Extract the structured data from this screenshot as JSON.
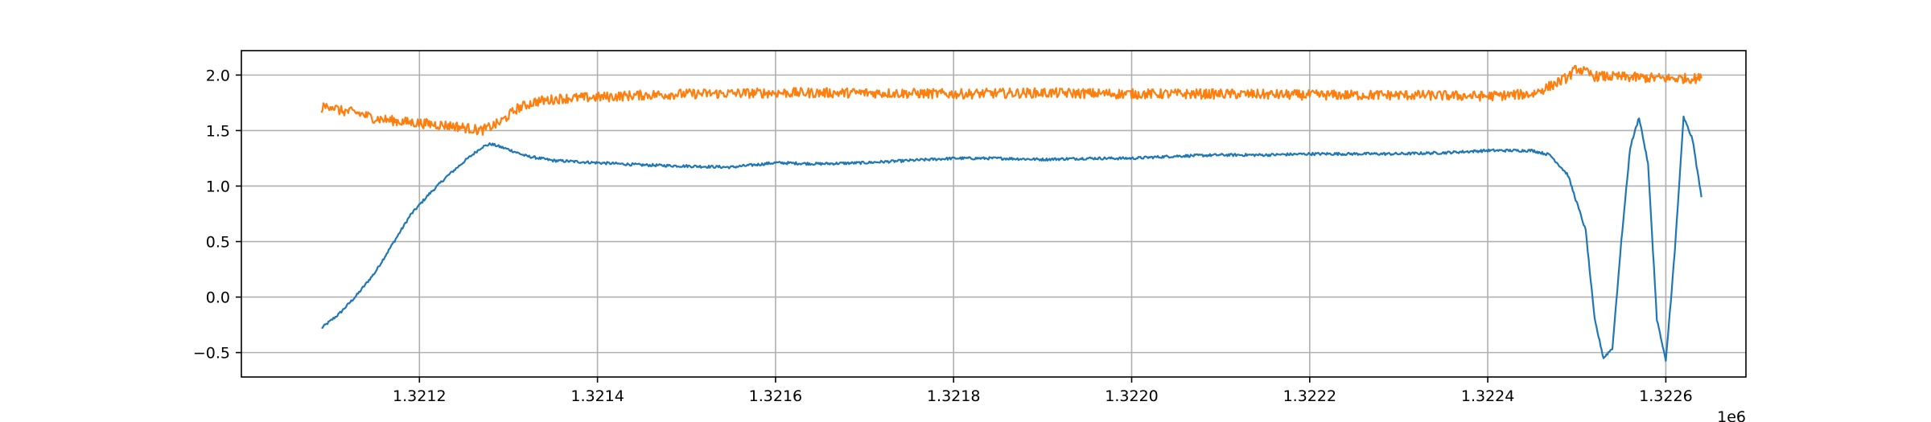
{
  "chart_data": {
    "type": "line",
    "title": "",
    "xlabel": "",
    "ylabel": "",
    "x_offset_label": "1e6",
    "xlim": [
      1.321,
      1.32269
    ],
    "ylim": [
      -0.72,
      2.22
    ],
    "grid": true,
    "x_ticks": [
      1.3212,
      1.3214,
      1.3216,
      1.3218,
      1.322,
      1.3222,
      1.3224,
      1.3226
    ],
    "x_tick_labels": [
      "1.3212",
      "1.3214",
      "1.3216",
      "1.3218",
      "1.3220",
      "1.3222",
      "1.3224",
      "1.3226"
    ],
    "y_ticks": [
      -0.5,
      0.0,
      0.5,
      1.0,
      1.5,
      2.0
    ],
    "y_tick_labels": [
      "−0.5",
      "0.0",
      "0.5",
      "1.0",
      "1.5",
      "2.0"
    ],
    "series": [
      {
        "color": "#1f77b4",
        "noise": 0.012,
        "points": [
          [
            1.32109,
            -0.28
          ],
          [
            1.32111,
            -0.15
          ],
          [
            1.32113,
            0.02
          ],
          [
            1.32115,
            0.22
          ],
          [
            1.32117,
            0.48
          ],
          [
            1.32119,
            0.74
          ],
          [
            1.32121,
            0.92
          ],
          [
            1.32123,
            1.08
          ],
          [
            1.32125,
            1.22
          ],
          [
            1.32127,
            1.35
          ],
          [
            1.32128,
            1.38
          ],
          [
            1.3213,
            1.33
          ],
          [
            1.32132,
            1.27
          ],
          [
            1.32135,
            1.23
          ],
          [
            1.3214,
            1.21
          ],
          [
            1.32145,
            1.19
          ],
          [
            1.3215,
            1.18
          ],
          [
            1.32155,
            1.17
          ],
          [
            1.3216,
            1.21
          ],
          [
            1.32165,
            1.2
          ],
          [
            1.3217,
            1.21
          ],
          [
            1.32175,
            1.23
          ],
          [
            1.3218,
            1.25
          ],
          [
            1.32185,
            1.25
          ],
          [
            1.3219,
            1.24
          ],
          [
            1.32195,
            1.25
          ],
          [
            1.322,
            1.25
          ],
          [
            1.32205,
            1.27
          ],
          [
            1.3221,
            1.28
          ],
          [
            1.32215,
            1.28
          ],
          [
            1.3222,
            1.29
          ],
          [
            1.32225,
            1.29
          ],
          [
            1.3223,
            1.29
          ],
          [
            1.32235,
            1.3
          ],
          [
            1.3224,
            1.32
          ],
          [
            1.32245,
            1.32
          ],
          [
            1.32247,
            1.28
          ],
          [
            1.32249,
            1.1
          ],
          [
            1.32251,
            0.6
          ],
          [
            1.32252,
            -0.2
          ],
          [
            1.32253,
            -0.55
          ],
          [
            1.32254,
            -0.46
          ],
          [
            1.32255,
            0.5
          ],
          [
            1.32256,
            1.35
          ],
          [
            1.32257,
            1.62
          ],
          [
            1.32258,
            1.2
          ],
          [
            1.32259,
            -0.2
          ],
          [
            1.3226,
            -0.58
          ],
          [
            1.32261,
            0.4
          ],
          [
            1.32262,
            1.62
          ],
          [
            1.32263,
            1.42
          ],
          [
            1.32264,
            0.9
          ]
        ]
      },
      {
        "color": "#ff7f0e",
        "noise": 0.045,
        "points": [
          [
            1.32109,
            1.7
          ],
          [
            1.3211,
            1.73
          ],
          [
            1.32111,
            1.68
          ],
          [
            1.32113,
            1.66
          ],
          [
            1.32115,
            1.61
          ],
          [
            1.32118,
            1.58
          ],
          [
            1.32121,
            1.56
          ],
          [
            1.32124,
            1.54
          ],
          [
            1.32127,
            1.5
          ],
          [
            1.32129,
            1.57
          ],
          [
            1.32131,
            1.7
          ],
          [
            1.32133,
            1.76
          ],
          [
            1.32136,
            1.79
          ],
          [
            1.3214,
            1.8
          ],
          [
            1.32145,
            1.82
          ],
          [
            1.3215,
            1.83
          ],
          [
            1.3216,
            1.84
          ],
          [
            1.3217,
            1.84
          ],
          [
            1.3218,
            1.83
          ],
          [
            1.3219,
            1.84
          ],
          [
            1.322,
            1.83
          ],
          [
            1.3221,
            1.83
          ],
          [
            1.3222,
            1.82
          ],
          [
            1.3223,
            1.82
          ],
          [
            1.3224,
            1.81
          ],
          [
            1.32245,
            1.83
          ],
          [
            1.32247,
            1.9
          ],
          [
            1.32249,
            1.98
          ],
          [
            1.3225,
            2.06
          ],
          [
            1.32252,
            1.99
          ],
          [
            1.32256,
            1.98
          ],
          [
            1.3226,
            1.97
          ],
          [
            1.32264,
            1.97
          ]
        ]
      }
    ]
  }
}
